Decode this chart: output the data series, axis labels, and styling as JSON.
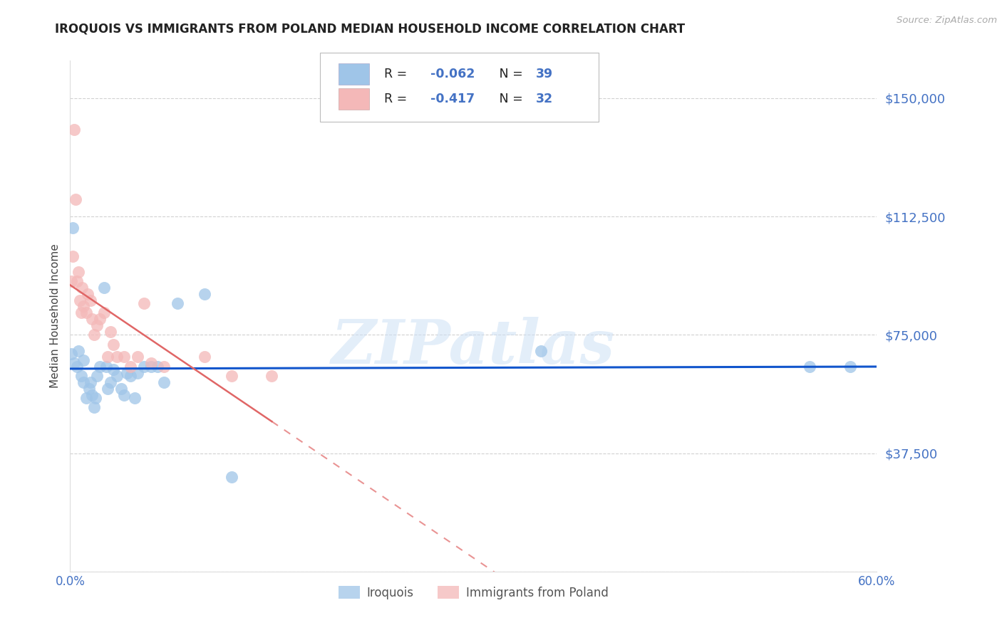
{
  "title": "IROQUOIS VS IMMIGRANTS FROM POLAND MEDIAN HOUSEHOLD INCOME CORRELATION CHART",
  "source": "Source: ZipAtlas.com",
  "ylabel": "Median Household Income",
  "yticks": [
    0,
    37500,
    75000,
    112500,
    150000
  ],
  "ytick_labels": [
    "",
    "$37,500",
    "$75,000",
    "$112,500",
    "$150,000"
  ],
  "xticks": [
    0.0,
    0.1,
    0.2,
    0.3,
    0.4,
    0.5,
    0.6
  ],
  "xtick_labels": [
    "0.0%",
    "",
    "",
    "",
    "",
    "",
    "60.0%"
  ],
  "xmin": 0.0,
  "xmax": 0.6,
  "ymin": 0,
  "ymax": 162000,
  "blue_scatter_color": "#9fc5e8",
  "pink_scatter_color": "#f4b8b8",
  "blue_line_color": "#1155cc",
  "pink_line_color": "#e06666",
  "axis_label_color": "#4472c4",
  "title_color": "#222222",
  "grid_color": "#cccccc",
  "watermark_text": "ZIPatlas",
  "watermark_color": "#cde0f5",
  "legend_r_color": "#cc0000",
  "legend_n_color": "#4472c4",
  "legend_text_color": "#222222",
  "series1_label": "Iroquois",
  "series2_label": "Immigrants from Poland",
  "iroquois_x": [
    0.001,
    0.002,
    0.003,
    0.005,
    0.006,
    0.008,
    0.01,
    0.01,
    0.012,
    0.014,
    0.015,
    0.016,
    0.018,
    0.019,
    0.02,
    0.022,
    0.025,
    0.027,
    0.028,
    0.03,
    0.032,
    0.035,
    0.038,
    0.04,
    0.042,
    0.045,
    0.048,
    0.05,
    0.055,
    0.06,
    0.065,
    0.07,
    0.08,
    0.1,
    0.12,
    0.35,
    0.55,
    0.58
  ],
  "iroquois_y": [
    69000,
    109000,
    66000,
    65000,
    70000,
    62000,
    60000,
    67000,
    55000,
    58000,
    60000,
    56000,
    52000,
    55000,
    62000,
    65000,
    90000,
    65000,
    58000,
    60000,
    64000,
    62000,
    58000,
    56000,
    63000,
    62000,
    55000,
    63000,
    65000,
    65000,
    65000,
    60000,
    85000,
    88000,
    30000,
    70000,
    65000,
    65000
  ],
  "poland_x": [
    0.001,
    0.002,
    0.003,
    0.004,
    0.005,
    0.006,
    0.007,
    0.008,
    0.009,
    0.01,
    0.012,
    0.013,
    0.015,
    0.016,
    0.018,
    0.02,
    0.022,
    0.025,
    0.028,
    0.03,
    0.032,
    0.035,
    0.04,
    0.045,
    0.05,
    0.055,
    0.06,
    0.07,
    0.1,
    0.12,
    0.15
  ],
  "poland_y": [
    92000,
    100000,
    140000,
    118000,
    92000,
    95000,
    86000,
    82000,
    90000,
    84000,
    82000,
    88000,
    86000,
    80000,
    75000,
    78000,
    80000,
    82000,
    68000,
    76000,
    72000,
    68000,
    68000,
    65000,
    68000,
    85000,
    66000,
    65000,
    68000,
    62000,
    62000
  ]
}
